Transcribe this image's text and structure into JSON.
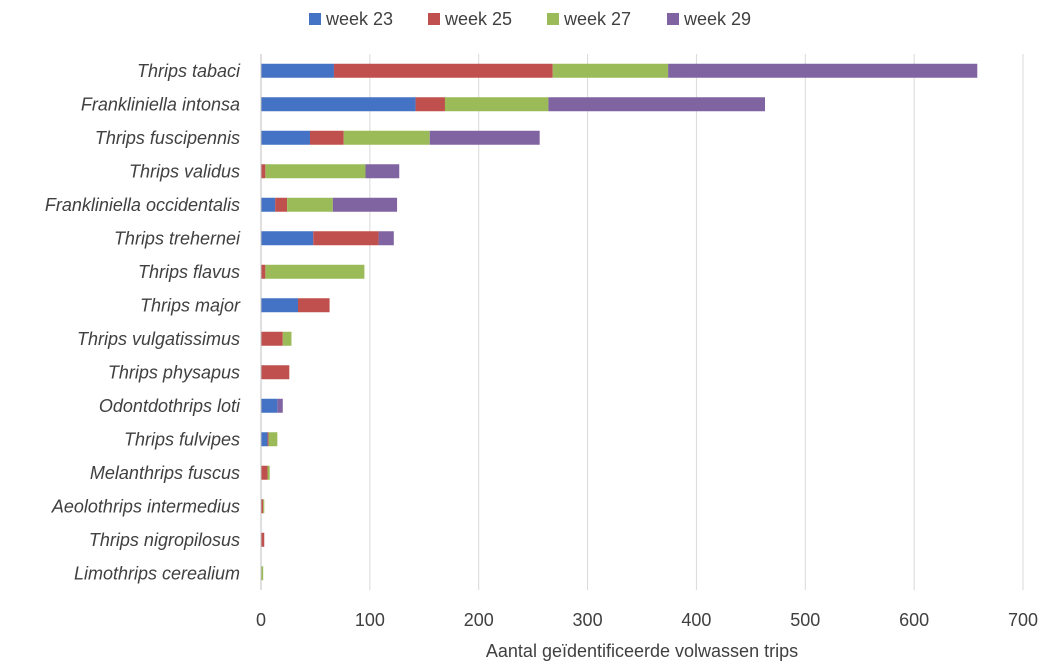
{
  "chart_data": {
    "type": "bar",
    "orientation": "horizontal",
    "stacked": true,
    "categories": [
      "Thrips tabaci",
      "Frankliniella intonsa",
      "Thrips fuscipennis",
      "Thrips validus",
      "Frankliniella occidentalis",
      "Thrips trehernei",
      "Thrips flavus",
      "Thrips major",
      "Thrips vulgatissimus",
      "Thrips physapus",
      "Odontdothrips loti",
      "Thrips fulvipes",
      "Melanthrips fuscus",
      "Aeolothrips intermedius",
      "Thrips nigropilosus",
      "Limothrips cerealium"
    ],
    "series": [
      {
        "name": "week 23",
        "color": "#4472C4",
        "values": [
          67,
          142,
          45,
          0,
          13,
          48,
          0,
          34,
          0,
          0,
          15,
          6,
          0,
          0,
          0,
          0
        ]
      },
      {
        "name": "week 25",
        "color": "#C0504D",
        "values": [
          201,
          27,
          31,
          4,
          11,
          60,
          4,
          29,
          20,
          26,
          0,
          1,
          6,
          2,
          3,
          0
        ]
      },
      {
        "name": "week 27",
        "color": "#9BBB59",
        "values": [
          106,
          95,
          79,
          92,
          42,
          0,
          91,
          0,
          8,
          0,
          0,
          8,
          2,
          1,
          0,
          2
        ]
      },
      {
        "name": "week 29",
        "color": "#8064A2",
        "values": [
          284,
          199,
          101,
          31,
          59,
          14,
          0,
          0,
          0,
          0,
          5,
          0,
          0,
          0,
          0,
          0
        ]
      }
    ],
    "title": "",
    "xlabel": "Aantal geïdentificeerde volwassen trips",
    "ylabel": "",
    "xlim": [
      0,
      700
    ],
    "xticks": [
      0,
      100,
      200,
      300,
      400,
      500,
      600,
      700
    ],
    "grid": "vertical",
    "legend_position": "top"
  }
}
